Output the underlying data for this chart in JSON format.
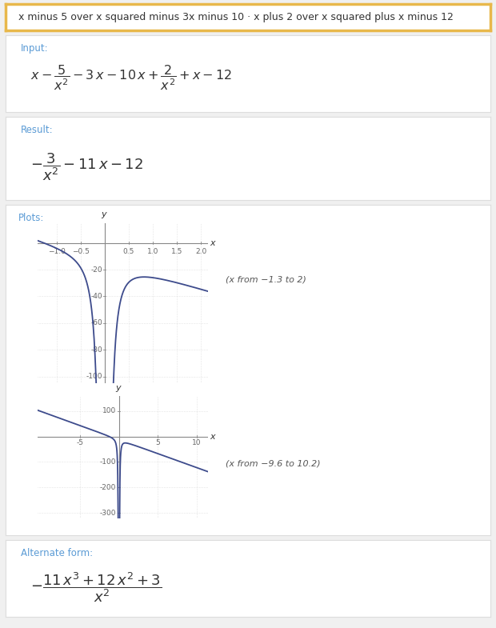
{
  "title_text": "x minus 5 over x squared minus 3x minus 10 · x plus 2 over x squared plus x minus 12",
  "title_border_color": "#E8B84B",
  "title_bg_color": "#FFFFFF",
  "input_label": "Input:",
  "result_label": "Result:",
  "plots_label": "Plots:",
  "plot1_note": "(x from −1.3 to 2)",
  "plot1_xlim": [
    -1.4,
    2.15
  ],
  "plot1_ylim": [
    -105,
    15
  ],
  "plot1_xticks": [
    -1.0,
    -0.5,
    0.5,
    1.0,
    1.5,
    2.0
  ],
  "plot1_xtick_labels": [
    "−1.0",
    "−0.5",
    "0.5",
    "1.0",
    "1.5",
    "2.0"
  ],
  "plot1_yticks": [
    -100,
    -80,
    -60,
    -40,
    -20
  ],
  "plot2_note": "(x from −9.6 to 10.2)",
  "plot2_xlim": [
    -10.5,
    11.5
  ],
  "plot2_ylim": [
    -320,
    160
  ],
  "plot2_xticks": [
    -5,
    5,
    10
  ],
  "plot2_yticks": [
    -300,
    -200,
    -100,
    100
  ],
  "curve_color": "#3D4B8C",
  "axis_color": "#888888",
  "label_color": "#5B9BD5",
  "section_bg": "#FFFFFF",
  "section_border": "#DDDDDD",
  "outer_bg": "#F0F0F0",
  "text_color": "#333333",
  "tick_color": "#666666",
  "alternate_label": "Alternate form:",
  "note_color": "#555555"
}
